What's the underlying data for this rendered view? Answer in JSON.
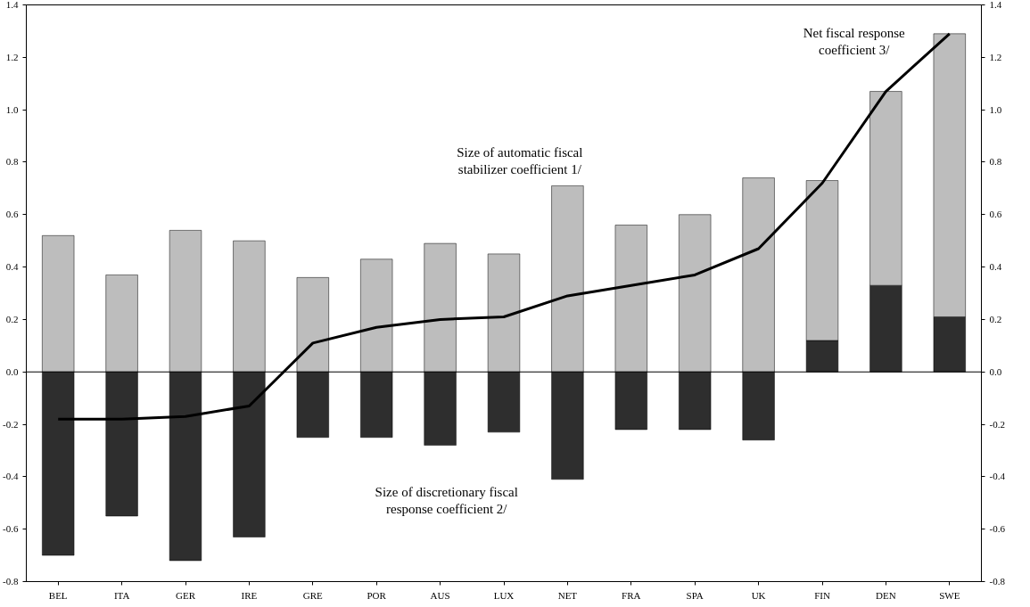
{
  "chart_data": {
    "type": "bar",
    "stacked": true,
    "categories": [
      "BEL",
      "ITA",
      "GER",
      "IRE",
      "GRE",
      "POR",
      "AUS",
      "LUX",
      "NET",
      "FRA",
      "SPA",
      "UK",
      "FIN",
      "DEN",
      "SWE"
    ],
    "series": [
      {
        "name": "Size of discretionary fiscal response coefficient 2/",
        "color": "#2e2e2e",
        "values": [
          -0.7,
          -0.55,
          -0.72,
          -0.63,
          -0.25,
          -0.25,
          -0.28,
          -0.23,
          -0.41,
          -0.22,
          -0.22,
          -0.26,
          0.12,
          0.33,
          0.21
        ]
      },
      {
        "name": "Size of automatic fiscal stabilizer coefficient 1/",
        "color": "#bdbdbd",
        "values": [
          0.52,
          0.37,
          0.54,
          0.5,
          0.36,
          0.43,
          0.49,
          0.45,
          0.71,
          0.56,
          0.6,
          0.74,
          0.61,
          0.74,
          1.08
        ]
      },
      {
        "name": "Net fiscal response coefficient 3/",
        "type": "line",
        "color": "#000000",
        "values": [
          -0.18,
          -0.18,
          -0.17,
          -0.13,
          0.11,
          0.17,
          0.2,
          0.21,
          0.29,
          0.33,
          0.37,
          0.47,
          0.72,
          1.07,
          1.29
        ]
      }
    ],
    "ylim": [
      -0.8,
      1.4
    ],
    "yticks": [
      -0.8,
      -0.6,
      -0.4,
      -0.2,
      {
        "value": 0,
        "label": "0.0"
      },
      0.2,
      0.4,
      0.6,
      0.8,
      {
        "value": 1,
        "label": "1.0"
      },
      1.2,
      1.4
    ],
    "y2lim": [
      -0.8,
      1.4
    ],
    "y2ticks": [
      -0.8,
      -0.6,
      -0.4,
      -0.2,
      {
        "value": 0,
        "label": "0.0"
      },
      0.2,
      0.4,
      0.6,
      0.8,
      {
        "value": 1,
        "label": "1.0"
      },
      1.2,
      1.4
    ],
    "ref_lines": [
      {
        "axis": "y",
        "value": 0,
        "color": "#000000"
      }
    ],
    "grid": false
  }
}
